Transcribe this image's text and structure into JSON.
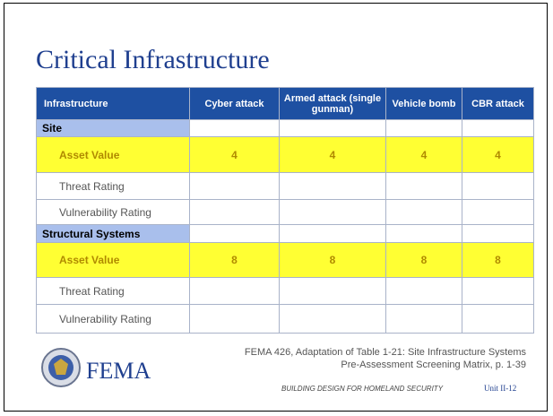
{
  "header": {
    "title": "Critical Infrastructure"
  },
  "table": {
    "columns": [
      "Infrastructure",
      "Cyber attack",
      "Armed attack (single gunman)",
      "Vehicle bomb",
      "CBR attack"
    ],
    "sections": [
      {
        "name": "Site",
        "rows": [
          {
            "label": "Asset Value",
            "values": [
              4,
              4,
              4,
              4
            ]
          },
          {
            "label": "Threat Rating"
          },
          {
            "label": "Vulnerability Rating"
          }
        ]
      },
      {
        "name": "Structural Systems",
        "rows": [
          {
            "label": "Asset Value",
            "values": [
              8,
              8,
              8,
              8
            ]
          },
          {
            "label": "Threat Rating"
          },
          {
            "label": "Vulnerability Rating"
          }
        ]
      }
    ]
  },
  "footer": {
    "logo": "FEMA",
    "citation": [
      "FEMA 426, Adaptation of Table 1-21: Site Infrastructure Systems",
      "Pre-Assessment Screening Matrix, p. 1-39"
    ],
    "course": "BUILDING DESIGN FOR HOMELAND SECURITY",
    "unit": "Unit II-12"
  }
}
